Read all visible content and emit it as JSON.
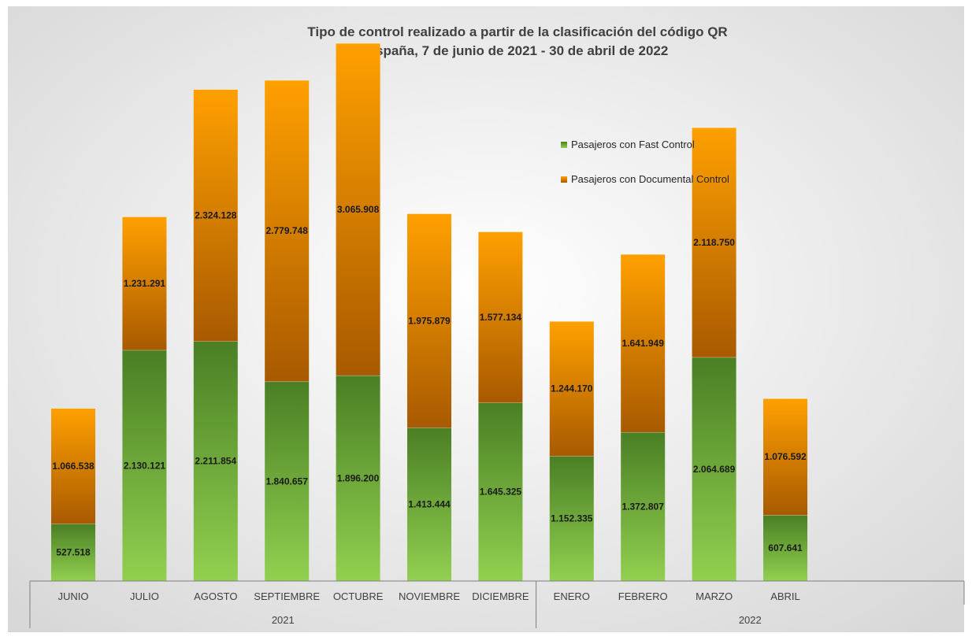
{
  "chart_data": {
    "type": "bar",
    "stacked": true,
    "title": "Tipo de control realizado a partir de la clasificación del código QR",
    "subtitle": "España, 7 de junio de 2021 - 30 de abril de 2022",
    "categories": [
      "JUNIO",
      "JULIO",
      "AGOSTO",
      "SEPTIEMBRE",
      "OCTUBRE",
      "NOVIEMBRE",
      "DICIEMBRE",
      "ENERO",
      "FEBRERO",
      "MARZO",
      "ABRIL"
    ],
    "groups": [
      {
        "label": "2021",
        "count": 7
      },
      {
        "label": "2022",
        "count": 4
      }
    ],
    "series": [
      {
        "name": "Pasajeros con Fast Control",
        "values": [
          527518,
          2130121,
          2211854,
          1840657,
          1896200,
          1413444,
          1645325,
          1152335,
          1372807,
          2064689,
          607641
        ],
        "labels": [
          "527.518",
          "2.130.121",
          "2.211.854",
          "1.840.657",
          "1.896.200",
          "1.413.444",
          "1.645.325",
          "1.152.335",
          "1.372.807",
          "2.064.689",
          "607.641"
        ],
        "color_top": "#4a7f24",
        "color_bottom": "#92d050"
      },
      {
        "name": "Pasajeros con Documental Control",
        "values": [
          1066538,
          1231291,
          2324128,
          2779748,
          3065908,
          1975879,
          1577134,
          1244170,
          1641949,
          2118750,
          1076592
        ],
        "labels": [
          "1.066.538",
          "1.231.291",
          "2.324.128",
          "2.779.748",
          "3.065.908",
          "1.975.879",
          "1.577.134",
          "1.244.170",
          "1.641.949",
          "2.118.750",
          "1.076.592"
        ],
        "color_top": "#ffa000",
        "color_bottom": "#a85a00"
      }
    ],
    "legend_position": "top-right",
    "ylim": [
      0,
      5070000
    ],
    "grid": false,
    "background_gradient": [
      "#ffffff",
      "#d6d6d6"
    ],
    "axis_color": "#7f7f7f"
  }
}
